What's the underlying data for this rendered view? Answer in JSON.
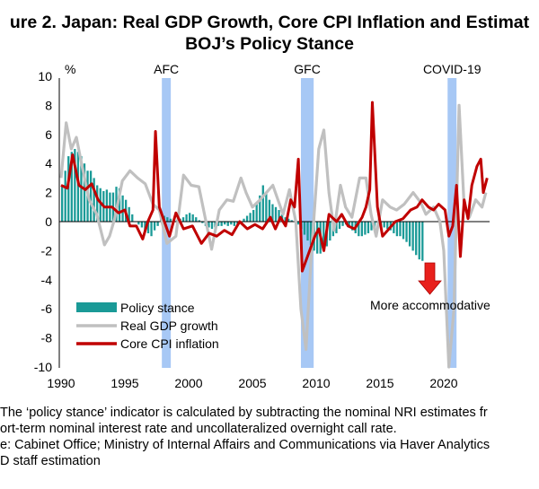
{
  "title": {
    "line1": "ure 2. Japan: Real GDP Growth, Core CPI Inflation and Estimat",
    "line2": "BOJ’s Policy Stance"
  },
  "footer": [
    "The ‘policy stance’ indicator is calculated by subtracting the nominal NRI estimates fr",
    "ort-term nominal interest rate and uncollateralized overnight call rate.",
    "e: Cabinet Office; Ministry of Internal Affairs and Communications via Haver Analytics",
    "D staff estimation"
  ],
  "chart_data": {
    "type": "bar+line",
    "ylabel": "%",
    "ylim": [
      -10,
      10
    ],
    "yticks": [
      10,
      8,
      6,
      4,
      2,
      0,
      -2,
      -4,
      -6,
      -8,
      -10
    ],
    "xticks": [
      1990,
      1995,
      2000,
      2005,
      2010,
      2015,
      2020
    ],
    "xlim": [
      1990,
      2023.5
    ],
    "grid": false,
    "legend_placement": "bottom-left",
    "colors": {
      "policy": "#1a9a97",
      "gdp": "#c0c0c0",
      "cpi": "#c00000",
      "shade": "#a7c8f5",
      "arrow": "#e8201c"
    },
    "shaded_periods": [
      {
        "label": "AFC",
        "start": 1997.9,
        "end": 1998.6
      },
      {
        "label": "GFC",
        "start": 2008.8,
        "end": 2009.8
      },
      {
        "label": "COVID-19",
        "start": 2020.3,
        "end": 2021.0
      }
    ],
    "annotation": "More accommodative",
    "series": [
      {
        "name": "Policy stance",
        "kind": "bar",
        "start": 1990,
        "step": 0.25,
        "values": [
          2.5,
          3.5,
          4.5,
          4.8,
          5.0,
          4.8,
          4.5,
          4.0,
          3.5,
          3.5,
          3.0,
          2.5,
          2.3,
          2.1,
          2.2,
          2.0,
          2.0,
          2.4,
          2.3,
          1.8,
          1.5,
          1.0,
          0.5,
          0.0,
          -0.2,
          -0.4,
          -0.6,
          -0.8,
          -1.0,
          -0.6,
          -0.3,
          0.5,
          0.4,
          0.3,
          0.2,
          0.1,
          0.1,
          0.2,
          0.3,
          0.5,
          0.6,
          0.5,
          0.3,
          0.1,
          -0.1,
          -0.3,
          -0.4,
          -0.5,
          -0.4,
          -0.3,
          -0.3,
          -0.2,
          -0.3,
          -0.2,
          -0.3,
          -0.2,
          0.0,
          0.2,
          0.4,
          0.6,
          0.8,
          1.2,
          1.8,
          2.5,
          2.0,
          1.5,
          1.2,
          1.0,
          0.8,
          0.5,
          0.3,
          0.2,
          0.1,
          0.0,
          -0.2,
          -0.5,
          -0.9,
          -1.3,
          -1.6,
          -2.0,
          -2.2,
          -2.2,
          -2.0,
          -1.7,
          -1.3,
          -1.0,
          -0.8,
          -0.5,
          -0.3,
          -0.2,
          -0.4,
          -0.6,
          -0.8,
          -1.0,
          -1.0,
          -0.9,
          -0.8,
          -0.6,
          -0.5,
          -0.3,
          -0.3,
          -0.4,
          -0.5,
          -0.6,
          -0.8,
          -1.0,
          -1.0,
          -1.2,
          -1.4,
          -1.7,
          -2.0,
          -2.3,
          -2.6,
          -2.7
        ]
      },
      {
        "name": "Real GDP growth",
        "kind": "line",
        "points": [
          [
            1990,
            3.0
          ],
          [
            1990.4,
            6.8
          ],
          [
            1990.8,
            5.0
          ],
          [
            1991.2,
            5.8
          ],
          [
            1991.6,
            4.0
          ],
          [
            1992.2,
            1.5
          ],
          [
            1992.8,
            0.5
          ],
          [
            1993.4,
            -1.6
          ],
          [
            1993.8,
            -1.0
          ],
          [
            1994.2,
            0.2
          ],
          [
            1994.8,
            2.8
          ],
          [
            1995.4,
            3.5
          ],
          [
            1996.0,
            3.0
          ],
          [
            1996.6,
            2.6
          ],
          [
            1997.2,
            1.2
          ],
          [
            1997.7,
            0.8
          ],
          [
            1998.3,
            -1.5
          ],
          [
            1999.0,
            -1.0
          ],
          [
            1999.6,
            3.2
          ],
          [
            2000.2,
            2.5
          ],
          [
            2000.8,
            2.4
          ],
          [
            2001.8,
            -1.9
          ],
          [
            2002.4,
            0.8
          ],
          [
            2003.0,
            1.5
          ],
          [
            2003.5,
            1.4
          ],
          [
            2004.1,
            3.0
          ],
          [
            2004.5,
            2.0
          ],
          [
            2005.0,
            1.0
          ],
          [
            2005.6,
            1.5
          ],
          [
            2006.6,
            2.5
          ],
          [
            2007.4,
            0.5
          ],
          [
            2007.9,
            2.2
          ],
          [
            2008.4,
            0.0
          ],
          [
            2008.8,
            -6.0
          ],
          [
            2009.2,
            -8.8
          ],
          [
            2009.6,
            -2.5
          ],
          [
            2010.2,
            5.0
          ],
          [
            2010.6,
            6.3
          ],
          [
            2011.0,
            2.0
          ],
          [
            2011.4,
            -0.6
          ],
          [
            2011.9,
            2.5
          ],
          [
            2012.3,
            1.0
          ],
          [
            2012.8,
            0.3
          ],
          [
            2013.4,
            3.0
          ],
          [
            2013.9,
            3.0
          ],
          [
            2014.3,
            0.5
          ],
          [
            2014.7,
            -1.0
          ],
          [
            2015.2,
            1.5
          ],
          [
            2015.8,
            1.0
          ],
          [
            2016.3,
            0.8
          ],
          [
            2016.9,
            1.2
          ],
          [
            2017.6,
            2.0
          ],
          [
            2018.2,
            1.3
          ],
          [
            2018.6,
            0.5
          ],
          [
            2019.2,
            1.0
          ],
          [
            2019.7,
            0.0
          ],
          [
            2020.0,
            -2.0
          ],
          [
            2020.4,
            -10.0
          ],
          [
            2020.8,
            -6.0
          ],
          [
            2021.2,
            8.0
          ],
          [
            2021.6,
            1.0
          ],
          [
            2022.0,
            0.3
          ],
          [
            2022.5,
            1.5
          ],
          [
            2023.0,
            1.0
          ],
          [
            2023.3,
            2.0
          ]
        ]
      },
      {
        "name": "Core CPI inflation",
        "kind": "line",
        "points": [
          [
            1990,
            2.5
          ],
          [
            1990.5,
            2.3
          ],
          [
            1990.9,
            4.6
          ],
          [
            1991.4,
            2.5
          ],
          [
            1991.9,
            2.2
          ],
          [
            1992.4,
            2.6
          ],
          [
            1992.9,
            1.5
          ],
          [
            1993.4,
            1.0
          ],
          [
            1994.0,
            1.0
          ],
          [
            1994.5,
            0.6
          ],
          [
            1995.0,
            0.8
          ],
          [
            1995.4,
            -0.3
          ],
          [
            1995.9,
            -0.3
          ],
          [
            1996.4,
            -1.2
          ],
          [
            1996.8,
            0.0
          ],
          [
            1997.2,
            0.8
          ],
          [
            1997.4,
            6.2
          ],
          [
            1997.7,
            1.0
          ],
          [
            1998.1,
            0.0
          ],
          [
            1998.5,
            -1.0
          ],
          [
            1999.0,
            0.6
          ],
          [
            1999.6,
            -0.5
          ],
          [
            2000.3,
            -0.3
          ],
          [
            2001.0,
            -1.5
          ],
          [
            2001.6,
            -0.8
          ],
          [
            2002.2,
            -1.0
          ],
          [
            2002.8,
            -0.6
          ],
          [
            2003.4,
            -0.9
          ],
          [
            2004.0,
            0.0
          ],
          [
            2004.6,
            -0.5
          ],
          [
            2005.2,
            -0.2
          ],
          [
            2005.8,
            -0.5
          ],
          [
            2006.4,
            0.3
          ],
          [
            2006.8,
            -0.5
          ],
          [
            2007.2,
            0.3
          ],
          [
            2007.6,
            -0.3
          ],
          [
            2008.0,
            1.5
          ],
          [
            2008.3,
            1.0
          ],
          [
            2008.6,
            4.3
          ],
          [
            2008.9,
            -3.4
          ],
          [
            2009.4,
            -2.2
          ],
          [
            2009.9,
            -1.0
          ],
          [
            2010.2,
            -0.5
          ],
          [
            2010.6,
            -2.0
          ],
          [
            2011.0,
            0.5
          ],
          [
            2011.6,
            0.0
          ],
          [
            2012.0,
            0.5
          ],
          [
            2012.5,
            -0.3
          ],
          [
            2013.0,
            -0.5
          ],
          [
            2013.6,
            0.3
          ],
          [
            2013.9,
            1.0
          ],
          [
            2014.2,
            2.2
          ],
          [
            2014.4,
            8.2
          ],
          [
            2014.8,
            1.0
          ],
          [
            2015.2,
            -1.0
          ],
          [
            2015.6,
            -0.6
          ],
          [
            2016.2,
            0.0
          ],
          [
            2016.8,
            0.2
          ],
          [
            2017.4,
            0.8
          ],
          [
            2017.9,
            1.0
          ],
          [
            2018.3,
            1.5
          ],
          [
            2018.8,
            1.0
          ],
          [
            2019.2,
            0.8
          ],
          [
            2019.6,
            1.2
          ],
          [
            2020.1,
            0.8
          ],
          [
            2020.4,
            -1.0
          ],
          [
            2020.7,
            -0.3
          ],
          [
            2021.0,
            2.5
          ],
          [
            2021.3,
            -2.4
          ],
          [
            2021.6,
            1.5
          ],
          [
            2021.9,
            0.2
          ],
          [
            2022.2,
            2.5
          ],
          [
            2022.6,
            3.8
          ],
          [
            2022.9,
            4.3
          ],
          [
            2023.1,
            2.0
          ],
          [
            2023.4,
            3.0
          ]
        ]
      }
    ]
  }
}
